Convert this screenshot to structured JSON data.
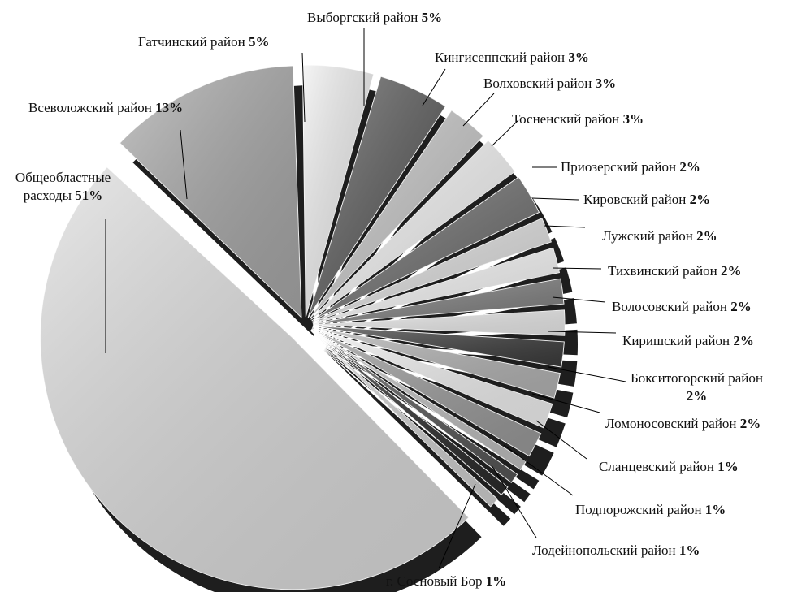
{
  "chart_data": {
    "type": "pie",
    "categories": [
      "Общеобластные расходы",
      "Всеволожский район",
      "Гатчинский район",
      "Выборгский район",
      "Кингисеппский район",
      "Волховский район",
      "Тосненский район",
      "Приозерский район",
      "Кировский район",
      "Лужский район",
      "Тихвинский район",
      "Волосовский район",
      "Киришский район",
      "Бокситогорский район",
      "Ломоносовский район",
      "Сланцевский район",
      "Подпорожский район",
      "Лодейнопольский район",
      "г. Сосновый Бор"
    ],
    "values": [
      51,
      13,
      5,
      5,
      3,
      3,
      3,
      2,
      2,
      2,
      2,
      2,
      2,
      2,
      2,
      1,
      1,
      1,
      1
    ],
    "value_labels": [
      "51%",
      "13%",
      "5%",
      "5%",
      "3%",
      "3%",
      "3%",
      "2%",
      "2%",
      "2%",
      "2%",
      "2%",
      "2%",
      "2%",
      "2%",
      "1%",
      "1%",
      "1%",
      "1%"
    ],
    "colors": [
      "#dcdcdc",
      "#a8a8a8",
      "#f0f0f0",
      "#5a5a5a",
      "#c8c8c8",
      "#f5f5f5",
      "#6e6e6e",
      "#e0e0e0",
      "#f8f8f8",
      "#808080",
      "#ececec",
      "#3c3c3c",
      "#b4b4b4",
      "#f2f2f2",
      "#9a9a9a",
      "#c0c0c0",
      "#555555",
      "#2a2a2a",
      "#d0d0d0"
    ]
  }
}
